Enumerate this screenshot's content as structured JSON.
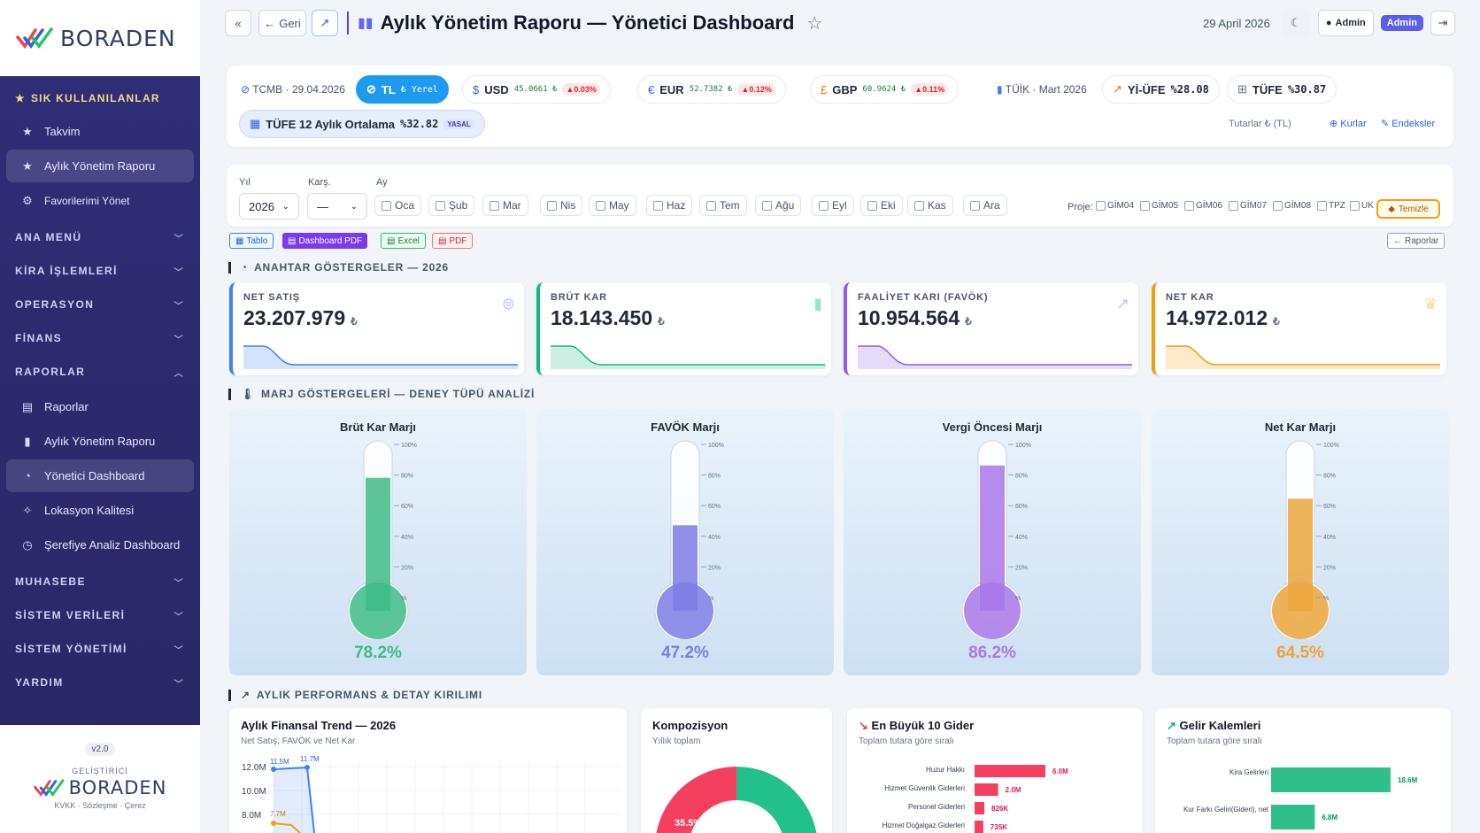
{
  "brand": {
    "name": "BORADEN",
    "version": "v2.0",
    "developer_label": "GELİŞTİRİCİ",
    "footer_links": "KVKK · Sözleşme · Çerez"
  },
  "sidebar": {
    "favorites_title": "SIK KULLANILANLAR",
    "favorites": [
      {
        "label": "Takvim",
        "icon": "star-icon"
      },
      {
        "label": "Aylık Yönetim Raporu",
        "icon": "star-icon"
      },
      {
        "label": "Favorilerimi Yönet",
        "icon": "gear-icon"
      }
    ],
    "sections_top": [
      "ANA MENÜ",
      "KİRA İŞLEMLERİ",
      "OPERASYON",
      "FİNANS"
    ],
    "reports_title": "RAPORLAR",
    "reports": [
      {
        "label": "Raporlar",
        "icon": "document-icon"
      },
      {
        "label": "Aylık Yönetim Raporu",
        "icon": "bar-chart-icon"
      },
      {
        "label": "Yönetici Dashboard",
        "icon": "dashboard-icon"
      },
      {
        "label": "Lokasyon Kalitesi",
        "icon": "sparkle-icon"
      },
      {
        "label": "Şerefiye Analiz Dashboard",
        "icon": "gauge-icon"
      }
    ],
    "sections_bottom": [
      "MUHASEBE",
      "SİSTEM VERİLERİ",
      "SİSTEM YÖNETİMİ",
      "YARDIM"
    ]
  },
  "topbar": {
    "back_label": "Geri",
    "title": "Aylık Yönetim Raporu — Yönetici Dashboard",
    "date": "29 April 2026",
    "user": "Admin",
    "role_badge": "Admin"
  },
  "rates": {
    "tcmb_label": "TCMB · 29.04.2026",
    "tl": {
      "label": "TL",
      "sub": "₺ Yerel"
    },
    "usd": {
      "symbol": "$",
      "code": "USD",
      "value": "45.0661 ₺",
      "change": "▲0.03%"
    },
    "eur": {
      "symbol": "€",
      "code": "EUR",
      "value": "52.7382 ₺",
      "change": "▲0.12%"
    },
    "gbp": {
      "symbol": "£",
      "code": "GBP",
      "value": "60.9624 ₺",
      "change": "▲0.11%"
    },
    "tuik_label": "TÜİK · Mart 2026",
    "yiufe": {
      "code": "Yİ-ÜFE",
      "value": "%28.08"
    },
    "tufe": {
      "code": "TÜFE",
      "value": "%30.87"
    },
    "tufe12": {
      "label": "TÜFE 12 Aylık Ortalama",
      "value": "%32.82",
      "badge": "YASAL"
    },
    "amounts_note": "Tutarlar ₺ (TL)",
    "rates_link": "Kurlar",
    "index_link": "Endeksler"
  },
  "filters": {
    "year_label": "Yıl",
    "year_value": "2026",
    "compare_label": "Karş.",
    "compare_value": "—",
    "month_label": "Ay",
    "months": [
      "Oca",
      "Şub",
      "Mar",
      "Nis",
      "May",
      "Haz",
      "Tem",
      "Ağu",
      "Eyl",
      "Eki",
      "Kas",
      "Ara"
    ],
    "project_label": "Proje:",
    "projects": [
      "GİM04",
      "GİM05",
      "GİM06",
      "GİM07",
      "GİM08",
      "TPZ",
      "UK"
    ],
    "clear_label": "Temizle"
  },
  "export": {
    "table": "Tablo",
    "pdf_dashboard": "Dashboard PDF",
    "excel": "Excel",
    "pdf": "PDF",
    "reports": "Raporlar"
  },
  "sections": {
    "kpi": "ANAHTAR GÖSTERGELER — 2026",
    "margin": "MARJ GÖSTERGELERİ — DENEY TÜPÜ ANALİZİ",
    "perf": "AYLIK PERFORMANS & DETAY KIRILIMI"
  },
  "kpis": [
    {
      "label": "NET SATIŞ",
      "value": "23.207.979",
      "unit": "₺",
      "color": "#3b82f6",
      "icon": "coins-icon"
    },
    {
      "label": "BRÜT KAR",
      "value": "18.143.450",
      "unit": "₺",
      "color": "#10b981",
      "icon": "bar-chart-icon"
    },
    {
      "label": "FAALİYET KARI (FAVÖK)",
      "value": "10.954.564",
      "unit": "₺",
      "color": "#8b5cf6",
      "icon": "trend-icon"
    },
    {
      "label": "NET KAR",
      "value": "14.972.012",
      "unit": "₺",
      "color": "#f59e0b",
      "icon": "trophy-icon"
    }
  ],
  "thermo_scale": [
    "100%",
    "80%",
    "60%",
    "40%",
    "20%",
    "%"
  ],
  "margins": [
    {
      "title": "Brüt Kar Marjı",
      "value": "78.2%",
      "level": 0.782,
      "color": "#3dbb86"
    },
    {
      "title": "FAVÖK Marjı",
      "value": "47.2%",
      "level": 0.472,
      "color": "#7c7ce6"
    },
    {
      "title": "Vergi Öncesi Marjı",
      "value": "86.2%",
      "level": 0.862,
      "color": "#a877ea"
    },
    {
      "title": "Net Kar Marjı",
      "value": "64.5%",
      "level": 0.645,
      "color": "#eba43b"
    }
  ],
  "panels": {
    "trend": {
      "title": "Aylık Finansal Trend — 2026",
      "subtitle": "Net Satış, FAVÖK ve Net Kar",
      "yticks": [
        "12.0M",
        "10.0M",
        "8.0M"
      ],
      "labels": [
        "11.5M",
        "11.7M",
        "7.7M"
      ]
    },
    "composition": {
      "title": "Kompozisyon",
      "subtitle": "Yıllık toplam",
      "slice_label": "35.5%"
    },
    "expenses": {
      "title": "En Büyük 10 Gider",
      "subtitle": "Toplam tutara göre sıralı"
    },
    "income": {
      "title": "Gelir Kalemleri",
      "subtitle": "Toplam tutara göre sıralı"
    }
  },
  "chart_data": [
    {
      "type": "bar",
      "title": "En Büyük 10 Gider",
      "categories": [
        "Huzur Hakkı",
        "Hizmet Güvenlik Giderleri",
        "Personel Giderleri",
        "Hizmet Doğalgaz Giderleri"
      ],
      "values": [
        6.0,
        2.0,
        0.826,
        0.735
      ],
      "value_labels": [
        "6.0M",
        "2.0M",
        "826K",
        "735K"
      ],
      "color": "#f43f5e"
    },
    {
      "type": "bar",
      "title": "Gelir Kalemleri",
      "categories": [
        "Kira Gelirleri",
        "Kur Farkı Geliri(Gideri), net"
      ],
      "values": [
        18.6,
        6.8
      ],
      "value_labels": [
        "18.6M",
        "6.8M"
      ],
      "color": "#2fbf8a"
    }
  ]
}
